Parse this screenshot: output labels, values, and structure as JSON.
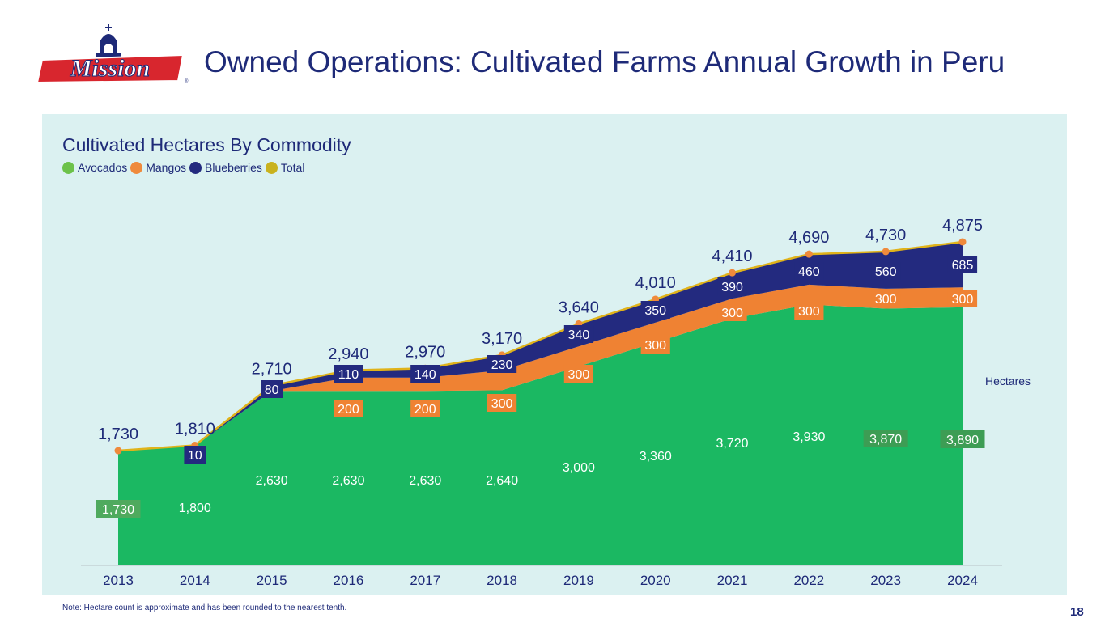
{
  "header": {
    "logo_text": "Mission",
    "title": "Owned Operations: Cultivated Farms Annual Growth in Peru"
  },
  "colors": {
    "navy": "#1e2a78",
    "avocados": "#1bb862",
    "mangos": "#ef8233",
    "blueberries": "#232a7f",
    "total": "#e0b31a",
    "panel": "#dbf1f1"
  },
  "chart_data": {
    "type": "area",
    "stacked": true,
    "title": "Cultivated Hectares By Commodity",
    "ylabel": "Hectares",
    "legend": [
      {
        "name": "Avocados",
        "color": "#6cc24a"
      },
      {
        "name": "Mangos",
        "color": "#ef8a3c"
      },
      {
        "name": "Blueberries",
        "color": "#232a7f"
      },
      {
        "name": "Total",
        "color": "#c9b21e"
      }
    ],
    "categories": [
      "2013",
      "2014",
      "2015",
      "2016",
      "2017",
      "2018",
      "2019",
      "2020",
      "2021",
      "2022",
      "2023",
      "2024"
    ],
    "series": [
      {
        "name": "Avocados",
        "values": [
          1730,
          1800,
          2630,
          2630,
          2630,
          2640,
          3000,
          3360,
          3720,
          3930,
          3870,
          3890
        ],
        "labels": [
          "1,730",
          "1,800",
          "2,630",
          "2,630",
          "2,630",
          "2,640",
          "3,000",
          "3,360",
          "3,720",
          "3,930",
          "3,870",
          "3,890"
        ]
      },
      {
        "name": "Mangos",
        "values": [
          0,
          0,
          0,
          200,
          200,
          300,
          300,
          300,
          300,
          300,
          300,
          300
        ],
        "labels": [
          "",
          "",
          "",
          "200",
          "200",
          "300",
          "300",
          "300",
          "300",
          "300",
          "300",
          "300"
        ]
      },
      {
        "name": "Blueberries",
        "values": [
          0,
          10,
          80,
          110,
          140,
          230,
          340,
          350,
          390,
          460,
          560,
          685
        ],
        "labels": [
          "",
          "10",
          "80",
          "110",
          "140",
          "230",
          "340",
          "350",
          "390",
          "460",
          "560",
          "685"
        ]
      }
    ],
    "total": {
      "name": "Total",
      "values": [
        1730,
        1810,
        2710,
        2940,
        2970,
        3170,
        3640,
        4010,
        4410,
        4690,
        4730,
        4875
      ],
      "labels": [
        "1,730",
        "1,810",
        "2,710",
        "2,940",
        "2,970",
        "3,170",
        "3,640",
        "4,010",
        "4,410",
        "4,690",
        "4,730",
        "4,875"
      ]
    },
    "ylim": [
      0,
      4875
    ]
  },
  "footer": {
    "note": "Note: Hectare count is approximate and has been rounded to the nearest tenth.",
    "page_number": "18"
  }
}
